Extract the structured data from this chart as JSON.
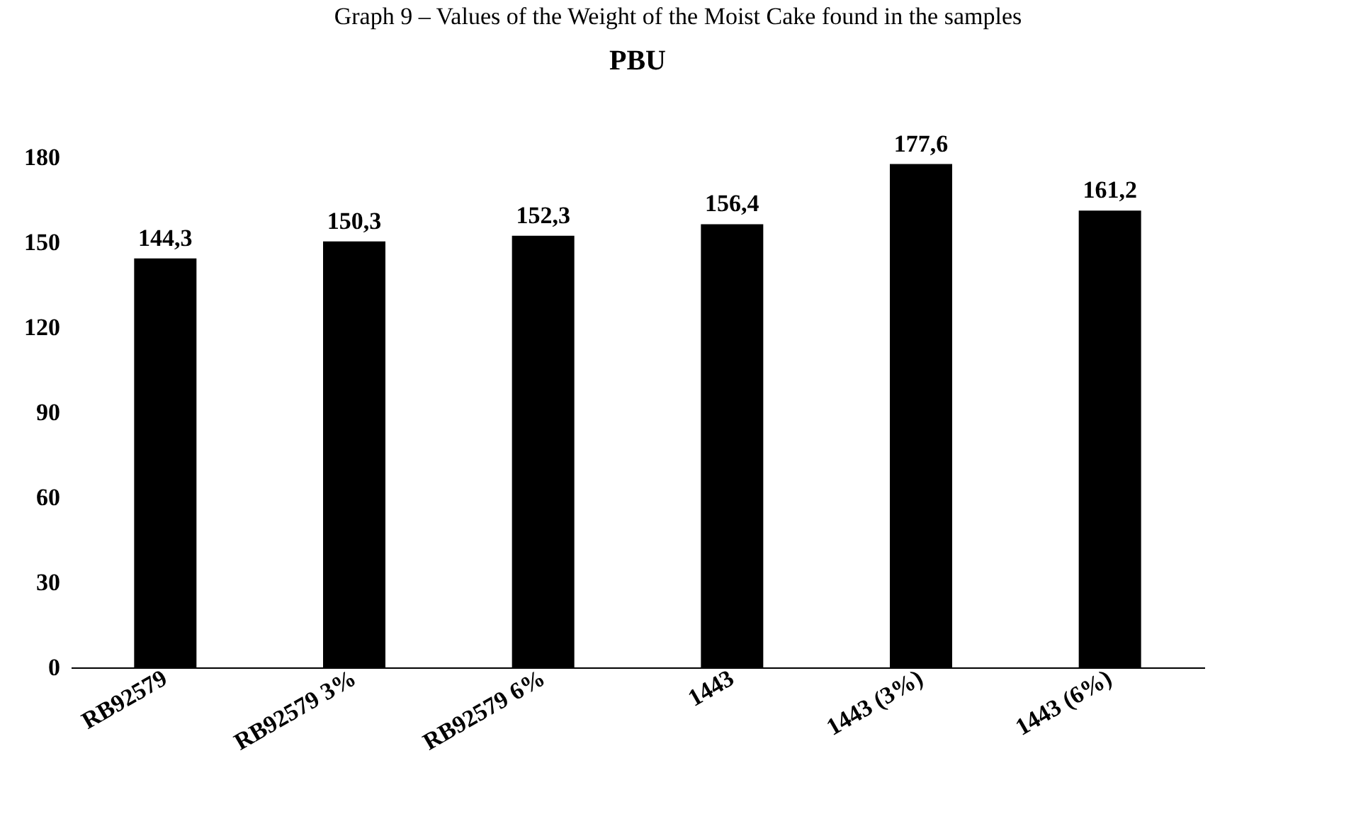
{
  "chart_data": {
    "type": "bar",
    "title": "Graph 9 – Values of the Weight of the Moist Cake found in the samples",
    "subtitle": "PBU",
    "categories": [
      "RB92579",
      "RB92579 3%",
      "RB92579 6%",
      "1443",
      "1443 (3%)",
      "1443 (6%)"
    ],
    "values": [
      144.3,
      150.3,
      152.3,
      156.4,
      177.6,
      161.2
    ],
    "value_labels": [
      "144,3",
      "150,3",
      "152,3",
      "156,4",
      "177,6",
      "161,2"
    ],
    "color": "#000000",
    "ylim": [
      0,
      180
    ],
    "yticks": [
      0,
      30,
      60,
      90,
      120,
      150,
      180
    ],
    "grid": false
  }
}
